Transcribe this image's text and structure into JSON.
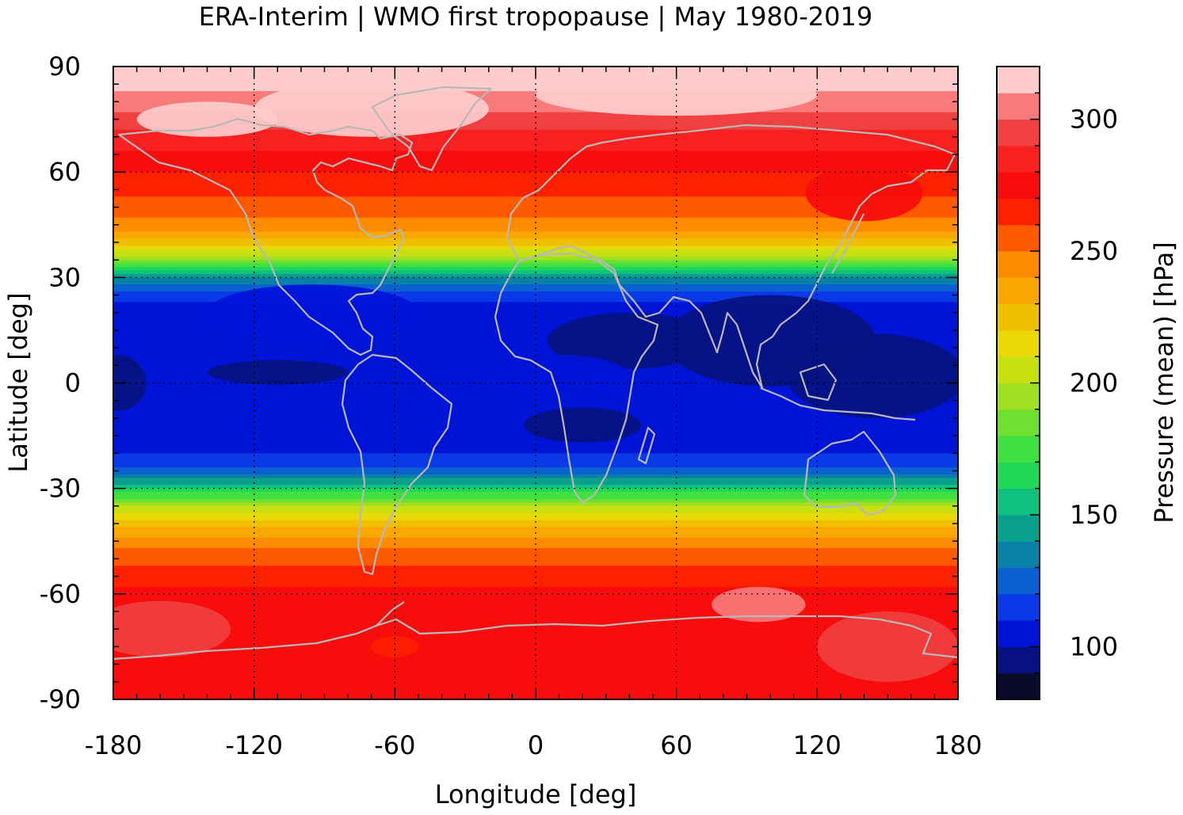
{
  "chart_data": {
    "type": "heatmap",
    "title": "ERA-Interim | WMO first tropopause | May 1980-2019",
    "xlabel": "Longitude [deg]",
    "ylabel": "Latitude [deg]",
    "colorbar_label": "Pressure (mean) [hPa]",
    "xlim": [
      -180,
      180
    ],
    "ylim": [
      -90,
      90
    ],
    "x_ticks": [
      "-180",
      "-120",
      "-60",
      "0",
      "60",
      "120",
      "180"
    ],
    "y_ticks": [
      "90",
      "60",
      "30",
      "0",
      "-30",
      "-60",
      "-90"
    ],
    "colorbar_range": [
      80,
      320
    ],
    "colorbar_ticks": [
      "100",
      "150",
      "200",
      "250",
      "300"
    ],
    "grid": true,
    "colormap": [
      "#0a0a2a",
      "#071280",
      "#0014d8",
      "#0a3ae8",
      "#0a60d0",
      "#0880a8",
      "#0aa08c",
      "#10c080",
      "#20d858",
      "#40e040",
      "#70e030",
      "#a0e020",
      "#c8e010",
      "#e8d808",
      "#f0c000",
      "#f8a800",
      "#ff8c00",
      "#ff5a00",
      "#ff2000",
      "#f80c0c",
      "#f82020",
      "#f04040",
      "#f87a7a",
      "#ffcccc"
    ],
    "zonal_mean_profile": {
      "lat": [
        90,
        84,
        78,
        72,
        66,
        60,
        54,
        48,
        42,
        36,
        30,
        24,
        18,
        12,
        6,
        0,
        -6,
        -12,
        -18,
        -24,
        -30,
        -36,
        -42,
        -48,
        -54,
        -60,
        -66,
        -72,
        -78,
        -84,
        -90
      ],
      "pressure": [
        318,
        312,
        302,
        290,
        280,
        270,
        262,
        252,
        238,
        200,
        140,
        112,
        103,
        100,
        100,
        100,
        101,
        102,
        105,
        118,
        160,
        205,
        235,
        252,
        265,
        272,
        275,
        276,
        277,
        277,
        277
      ]
    }
  }
}
